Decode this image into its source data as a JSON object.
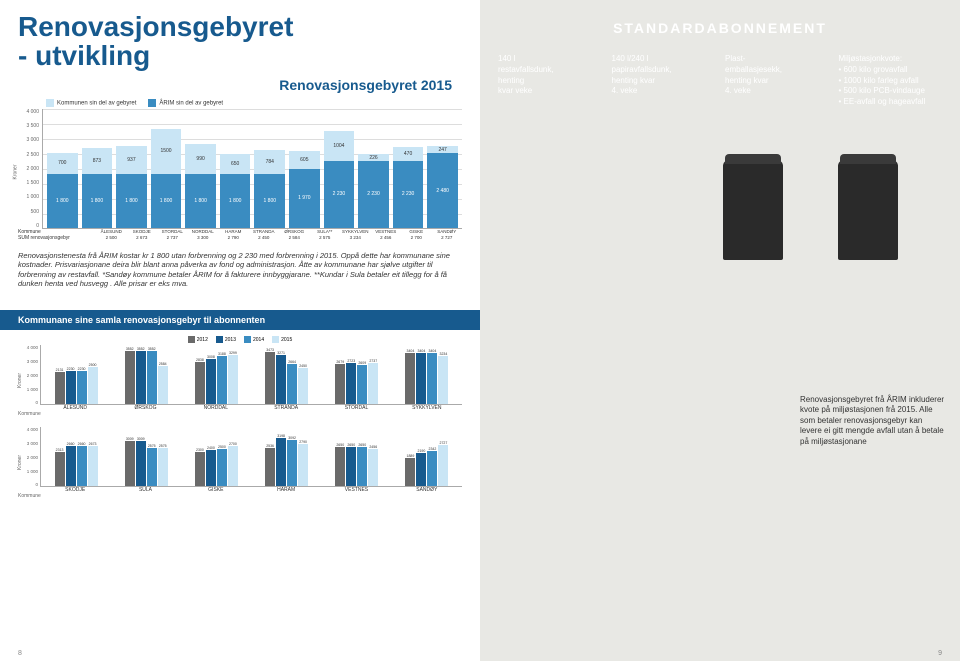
{
  "title_line1": "Renovasjonsgebyret",
  "title_line2": "- utvikling",
  "subtitle": "Renovasjonsgebyret 2015",
  "chart1": {
    "legend": [
      {
        "label": "Kommunen sin del av gebyret",
        "color": "#c9e5f5"
      },
      {
        "label": "ÅRIM sin del av gebyret",
        "color": "#3a8cc1"
      }
    ],
    "ylabel": "Kroner",
    "ymax": 4000,
    "yticks": [
      "4 000",
      "3 500",
      "3 000",
      "2 500",
      "2 000",
      "1 500",
      "1 000",
      "500",
      "0"
    ],
    "municipalities": [
      "ÅLESUND",
      "SKODJE",
      "STORDAL",
      "NORDDAL",
      "HARAM",
      "STRANDA",
      "ØRSKOG",
      "SULA**",
      "SYKKYLVEN",
      "VESTNES",
      "GISKE",
      "SANDØY"
    ],
    "top_values": [
      700,
      873,
      937,
      1500,
      990,
      650,
      784,
      605,
      1004,
      226,
      470,
      247
    ],
    "bot_values": [
      1800,
      1800,
      1800,
      1800,
      1800,
      1800,
      1800,
      1970,
      2230,
      2230,
      2230,
      2480
    ],
    "sum_label": "SUM renovasjonsgebyr",
    "kom_label": "Kommune",
    "sums": [
      "2 500",
      "2 673",
      "2 737",
      "3 300",
      "2 790",
      "2 450",
      "2 584",
      "2 575",
      "3 234",
      "2 456",
      "2 700",
      "2 727"
    ]
  },
  "footnote": "Renovasjonstenesta frå ÅRIM kostar kr 1 800 utan forbrenning og 2 230 med forbrenning i 2015. Oppå dette har kommunane sine kostnader. Prisvariasjonane deira blir blant anna påverka av fond og administrasjon. Åtte av kommunane har sjølve utgifter til forbrenning av restavfall. *Sandøy kommune betaler ÅRIM for å fakturere innbyggjarane. **Kundar i Sula betaler eit tillegg for å få dunken henta ved husvegg . Alle prisar er eks mva.",
  "standard": {
    "title": "STANDARDABONNEMENT",
    "cols": [
      {
        "lines": [
          "140 l",
          "restavfallsdunk,",
          "henting",
          "kvar veke"
        ]
      },
      {
        "lines": [
          "140 l/240 l",
          "papiravfallsdunk,",
          "henting kvar",
          "4. veke"
        ]
      },
      {
        "lines": [
          "Plast-",
          "emballasjesekk,",
          "henting kvar",
          "4. veke"
        ]
      },
      {
        "heading": "Miljøstasjonkvote:",
        "bullets": [
          "600 kilo grovavfall",
          "1000 kilo farleg avfall",
          "500 kilo PCB-vindauge",
          "EE-avfall og hageavfall"
        ]
      }
    ]
  },
  "band_title": "Kommunane sine samla renovasjonsgebyr til abonnenten",
  "years_legend": [
    {
      "label": "2012",
      "color": "#6a6a6a"
    },
    {
      "label": "2013",
      "color": "#175a8e"
    },
    {
      "label": "2014",
      "color": "#3a8cc1"
    },
    {
      "label": "2015",
      "color": "#c9e5f5"
    }
  ],
  "ymax2": 4000,
  "yticks2": [
    "4 000",
    "3 000",
    "2 000",
    "1 000",
    "0"
  ],
  "row1": {
    "groups": [
      {
        "name": "ÅLESUND",
        "vals": [
          2131,
          2230,
          2230,
          2500
        ]
      },
      {
        "name": "ØRSKOG",
        "vals": [
          3552,
          3552,
          3552,
          2584
        ]
      },
      {
        "name": "NORDDAL",
        "vals": [
          2838,
          3008,
          3188,
          3299
        ]
      },
      {
        "name": "STRANDA",
        "vals": [
          3473,
          3271,
          2664,
          2450
        ]
      },
      {
        "name": "STORDAL",
        "vals": [
          2679,
          2723,
          2609,
          2737
        ]
      },
      {
        "name": "SYKKYLVEN",
        "vals": [
          3404,
          3404,
          3404,
          3234
        ]
      }
    ]
  },
  "row2": {
    "groups": [
      {
        "name": "SKODJE",
        "vals": [
          2313,
          2660,
          2660,
          2673
        ]
      },
      {
        "name": "SULA",
        "vals": [
          3009,
          3009,
          2575,
          2575
        ]
      },
      {
        "name": "GISKE",
        "vals": [
          2300,
          2400,
          2500,
          2700
        ]
      },
      {
        "name": "HARAM",
        "vals": [
          2536,
          3198,
          3092,
          2790
        ]
      },
      {
        "name": "VESTNES",
        "vals": [
          2650,
          2650,
          2650,
          2456
        ]
      },
      {
        "name": "SANDØY",
        "vals": [
          1889,
          2190,
          2342,
          2727
        ]
      }
    ]
  },
  "right_note": "Renovasjonsgebyret frå ÅRIM inkluderer kvote på miljøstasjonen frå 2015. Alle som betaler renovasjonsgebyr kan levere ei gitt mengde avfall utan å betale på miljøstasjonane",
  "page_left": "8",
  "page_right": "9",
  "axis_label": "Kroner",
  "kommune_label": "Kommune"
}
